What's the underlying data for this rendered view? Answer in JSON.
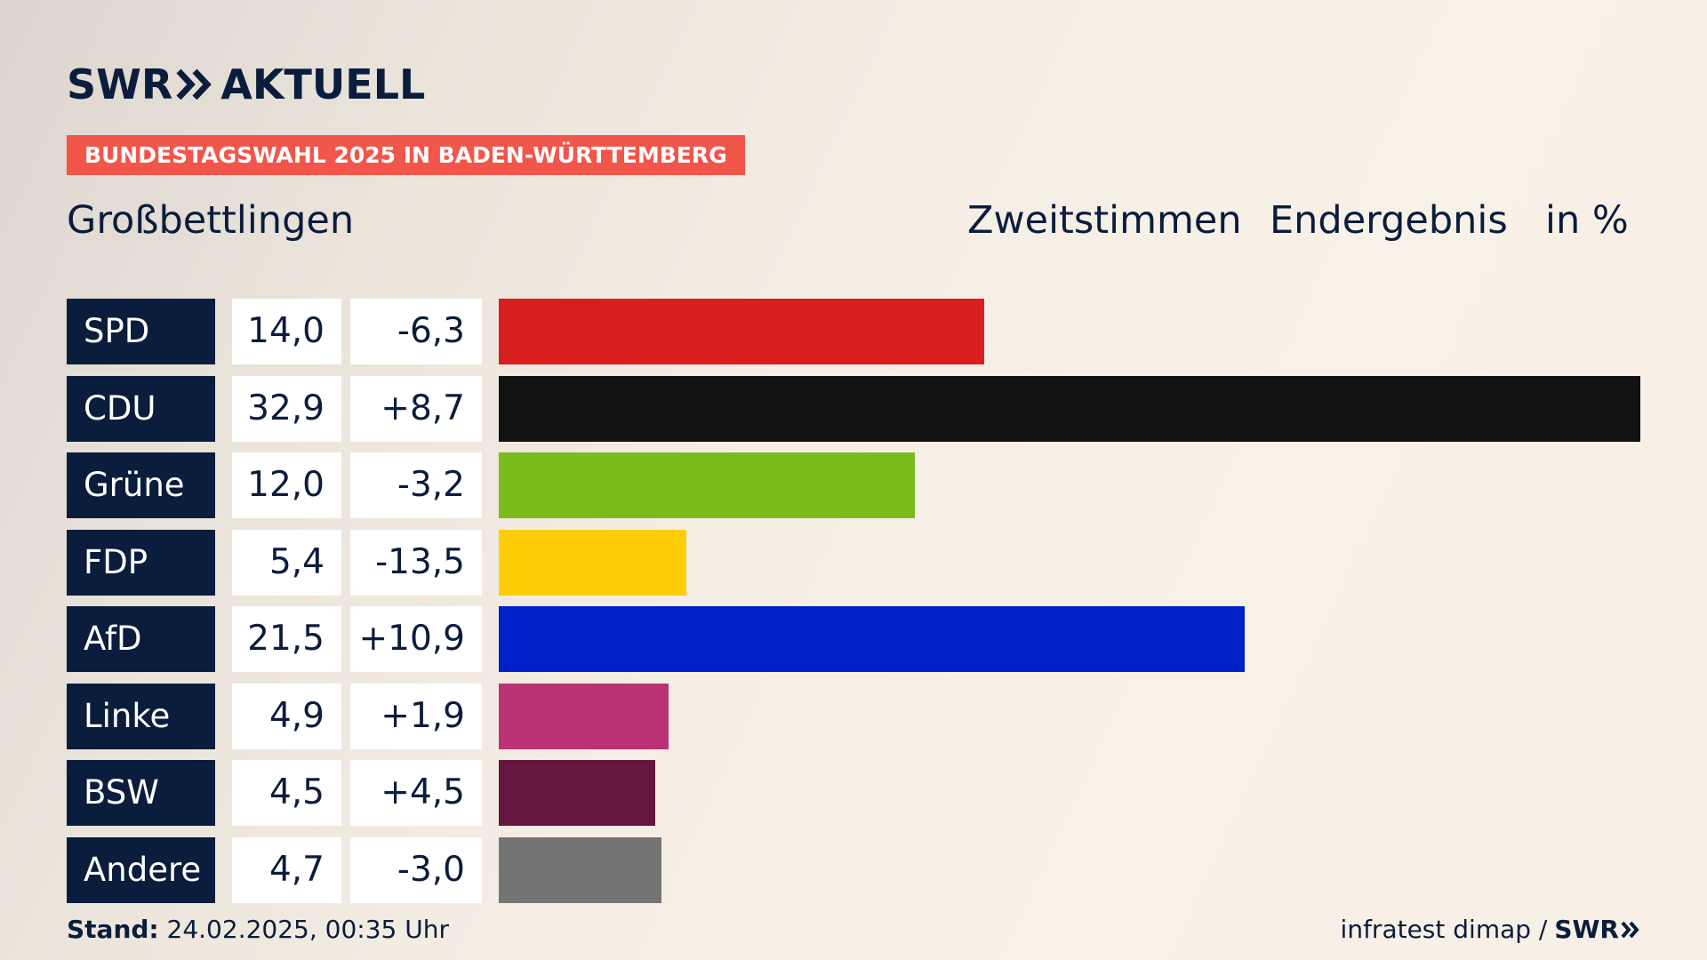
{
  "header": {
    "logo_a": "SWR",
    "logo_b": "AKTUELL",
    "tag": "BUNDESTAGSWAHL 2025 IN BADEN-WÜRTTEMBERG",
    "place": "Großbettlingen",
    "col_vote": "Zweitstimmen",
    "col_result": "Endergebnis",
    "col_unit": "in %"
  },
  "chart_data": {
    "type": "bar",
    "orientation": "horizontal",
    "categories": [
      "SPD",
      "CDU",
      "Grüne",
      "FDP",
      "AfD",
      "Linke",
      "BSW",
      "Andere"
    ],
    "values": [
      14.0,
      32.9,
      12.0,
      5.4,
      21.5,
      4.9,
      4.5,
      4.7
    ],
    "value_labels": [
      "14,0",
      "32,9",
      "12,0",
      "5,4",
      "21,5",
      "4,9",
      "4,5",
      "4,7"
    ],
    "diff_labels": [
      "-6,3",
      "+8,7",
      "-3,2",
      "-13,5",
      "+10,9",
      "+1,9",
      "+4,5",
      "-3,0"
    ],
    "diffs": [
      -6.3,
      8.7,
      -3.2,
      -13.5,
      10.9,
      1.9,
      4.5,
      -3.0
    ],
    "colors": [
      "#d81e1e",
      "#121212",
      "#79bc1b",
      "#ffcc08",
      "#0020c8",
      "#bb3275",
      "#66173f",
      "#747474"
    ],
    "xlim": [
      0,
      32.9
    ]
  },
  "footer": {
    "stand_label": "Stand:",
    "stand_value": "24.02.2025, 00:35 Uhr",
    "source": "infratest dimap /",
    "source_logo": "SWR"
  }
}
